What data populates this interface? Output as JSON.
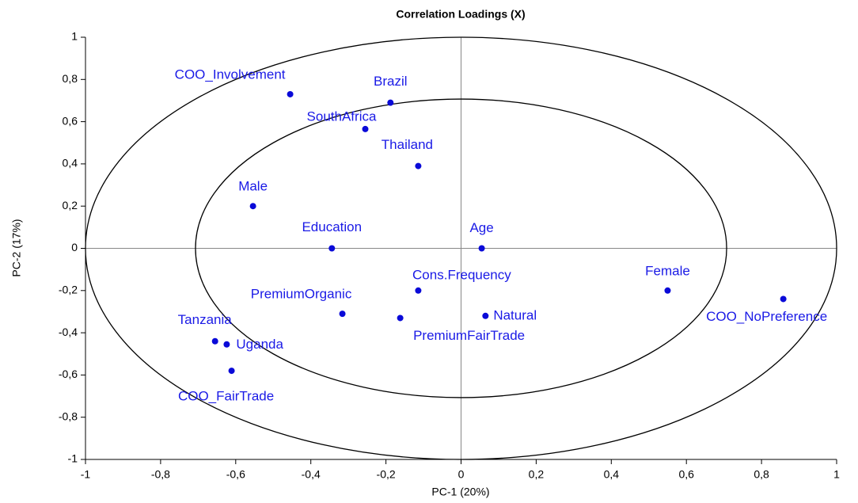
{
  "chart_data": {
    "type": "scatter",
    "title": "Correlation Loadings (X)",
    "x_label": "PC-1 (20%)",
    "y_label": "PC-2 (17%)",
    "labels": [
      "COO_Involvement",
      "Brazil",
      "SouthAfrica",
      "Thailand",
      "Male",
      "Education",
      "Age",
      "Cons.Frequency",
      "PremiumOrganic",
      "PremiumFairTrade",
      "Natural",
      "Female",
      "COO_NoPreference",
      "Tanzania",
      "Uganda",
      "COO_FairTrade"
    ],
    "x": [
      -0.455,
      -0.188,
      -0.255,
      -0.114,
      -0.554,
      -0.344,
      0.055,
      -0.114,
      -0.316,
      -0.162,
      0.065,
      0.55,
      0.858,
      -0.655,
      -0.624,
      -0.611
    ],
    "y": [
      0.73,
      0.69,
      0.565,
      0.39,
      0.2,
      0,
      0,
      -0.2,
      -0.31,
      -0.33,
      -0.32,
      -0.2,
      -0.24,
      -0.44,
      -0.455,
      -0.58
    ],
    "color": "#0a0ad8",
    "circles": [
      1,
      0.7071
    ],
    "xlim": [
      -1,
      1
    ],
    "ylim": [
      -1,
      1
    ],
    "xticks": [
      -1,
      {
        "value": -0.8,
        "label": "-0,8"
      },
      {
        "value": -0.6,
        "label": "-0,6"
      },
      {
        "value": -0.4,
        "label": "-0,4"
      },
      {
        "value": -0.2,
        "label": "-0,2"
      },
      0,
      {
        "value": 0.2,
        "label": "0,2"
      },
      {
        "value": 0.4,
        "label": "0,4"
      },
      {
        "value": 0.6,
        "label": "0,6"
      },
      {
        "value": 0.8,
        "label": "0,8"
      },
      1
    ],
    "yticks": [
      -1,
      {
        "value": -0.8,
        "label": "-0,8"
      },
      {
        "value": -0.6,
        "label": "-0,6"
      },
      {
        "value": -0.4,
        "label": "-0,4"
      },
      {
        "value": -0.2,
        "label": "-0,2"
      },
      0,
      {
        "value": 0.2,
        "label": "0,2"
      },
      {
        "value": 0.4,
        "label": "0,4"
      },
      {
        "value": 0.6,
        "label": "0,6"
      },
      {
        "value": 0.8,
        "label": "0,8"
      },
      1
    ]
  }
}
